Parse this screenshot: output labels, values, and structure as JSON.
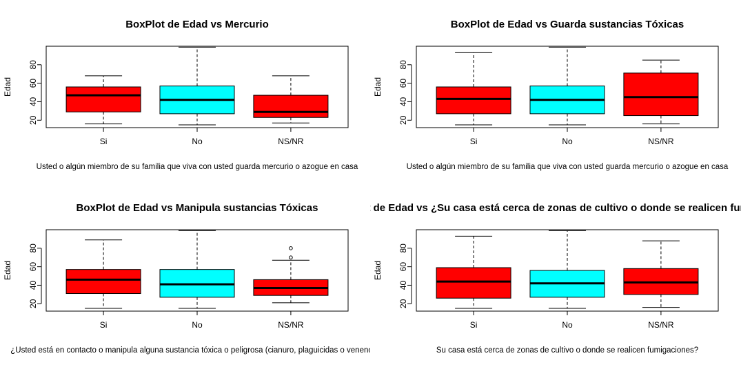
{
  "chart_data": [
    {
      "type": "box",
      "title": "BoxPlot de Edad vs Mercurio",
      "xlabel": "Usted o algún miembro de su familia que viva con usted  guarda mercurio o azogue en casa",
      "ylabel": "Edad",
      "categories": [
        "Si",
        "No",
        "NS/NR"
      ],
      "yticks": [
        20,
        40,
        60,
        80
      ],
      "ylim": [
        12,
        100
      ],
      "fill_colors": [
        "#ff0000",
        "#00ffff",
        "#ff0000"
      ],
      "boxes": [
        {
          "category": "Si",
          "min": 16,
          "q1": 29,
          "median": 47,
          "q3": 56,
          "max": 68,
          "outliers": []
        },
        {
          "category": "No",
          "min": 15,
          "q1": 27,
          "median": 42,
          "q3": 57,
          "max": 99,
          "outliers": []
        },
        {
          "category": "NS/NR",
          "min": 17,
          "q1": 23,
          "median": 29,
          "q3": 47,
          "max": 68,
          "outliers": []
        }
      ]
    },
    {
      "type": "box",
      "title": "BoxPlot de Edad vs Guarda sustancias Tóxicas",
      "xlabel": "Usted o algún miembro de su familia que viva con usted  guarda mercurio o azogue en casa",
      "ylabel": "Edad",
      "categories": [
        "Si",
        "No",
        "NS/NR"
      ],
      "yticks": [
        20,
        40,
        60,
        80
      ],
      "ylim": [
        12,
        100
      ],
      "fill_colors": [
        "#ff0000",
        "#00ffff",
        "#ff0000"
      ],
      "boxes": [
        {
          "category": "Si",
          "min": 15,
          "q1": 27,
          "median": 43,
          "q3": 56,
          "max": 93,
          "outliers": []
        },
        {
          "category": "No",
          "min": 15,
          "q1": 27,
          "median": 42,
          "q3": 57,
          "max": 99,
          "outliers": []
        },
        {
          "category": "NS/NR",
          "min": 16,
          "q1": 25,
          "median": 45,
          "q3": 71,
          "max": 85,
          "outliers": []
        }
      ]
    },
    {
      "type": "box",
      "title": "BoxPlot de Edad vs Manipula sustancias Tóxicas",
      "xlabel": "¿Usted está en contacto o manipula alguna sustancia tóxica o peligrosa (cianuro, plaguicidas  o venenos)?",
      "ylabel": "Edad",
      "categories": [
        "Si",
        "No",
        "NS/NR"
      ],
      "yticks": [
        20,
        40,
        60,
        80
      ],
      "ylim": [
        12,
        100
      ],
      "fill_colors": [
        "#ff0000",
        "#00ffff",
        "#ff0000"
      ],
      "boxes": [
        {
          "category": "Si",
          "min": 15,
          "q1": 31,
          "median": 46,
          "q3": 57,
          "max": 89,
          "outliers": []
        },
        {
          "category": "No",
          "min": 15,
          "q1": 27,
          "median": 41,
          "q3": 57,
          "max": 99,
          "outliers": []
        },
        {
          "category": "NS/NR",
          "min": 21,
          "q1": 29,
          "median": 37,
          "q3": 46,
          "max": 67,
          "outliers": [
            70,
            80
          ]
        }
      ]
    },
    {
      "type": "box",
      "title": "BoxPlot de Edad vs ¿Su casa está cerca de zonas de cultivo o donde se realicen fumigaciones?",
      "xlabel": "Su casa está cerca de zonas de cultivo o donde se realicen fumigaciones?",
      "ylabel": "Edad",
      "categories": [
        "Si",
        "No",
        "NS/NR"
      ],
      "yticks": [
        20,
        40,
        60,
        80
      ],
      "ylim": [
        12,
        100
      ],
      "fill_colors": [
        "#ff0000",
        "#00ffff",
        "#ff0000"
      ],
      "boxes": [
        {
          "category": "Si",
          "min": 15,
          "q1": 26,
          "median": 44,
          "q3": 59,
          "max": 93,
          "outliers": []
        },
        {
          "category": "No",
          "min": 15,
          "q1": 27,
          "median": 42,
          "q3": 56,
          "max": 99,
          "outliers": []
        },
        {
          "category": "NS/NR",
          "min": 16,
          "q1": 30,
          "median": 43,
          "q3": 58,
          "max": 88,
          "outliers": []
        }
      ]
    }
  ]
}
